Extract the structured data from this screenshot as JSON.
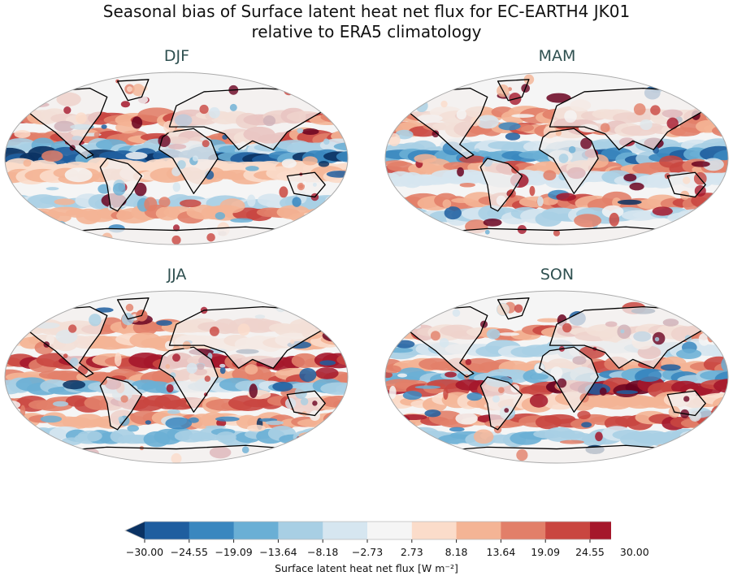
{
  "title_line1": "Seasonal bias of Surface latent heat net flux for EC-EARTH4 JK01",
  "title_line2": "relative to ERA5 climatology",
  "panels": [
    {
      "title": "DJF"
    },
    {
      "title": "MAM"
    },
    {
      "title": "JJA"
    },
    {
      "title": "SON"
    }
  ],
  "chart_data": {
    "type": "heatmap",
    "projection": "Robinson (global)",
    "panel_titles": [
      "DJF",
      "MAM",
      "JJA",
      "SON"
    ],
    "colorbar": {
      "label": "Surface latent heat net flux [W m⁻²]",
      "levels": [
        -30.0,
        -24.55,
        -19.09,
        -13.64,
        -8.18,
        -2.73,
        2.73,
        8.18,
        13.64,
        19.09,
        24.55,
        30.0
      ],
      "tick_labels": [
        "−30.00",
        "−24.55",
        "−19.09",
        "−13.64",
        "−8.18",
        "−2.73",
        "2.73",
        "8.18",
        "13.64",
        "19.09",
        "24.55",
        "30.00"
      ],
      "extend": "both",
      "orientation": "horizontal",
      "colors": [
        "#1f5e9f",
        "#3a87bf",
        "#6aafd5",
        "#a8cfe4",
        "#d6e6f0",
        "#f5f5f5",
        "#fbdcca",
        "#f4b495",
        "#e27f69",
        "#c94640",
        "#a5172b"
      ],
      "under_color": "#0a3263",
      "over_color": "#6a0220"
    }
  }
}
